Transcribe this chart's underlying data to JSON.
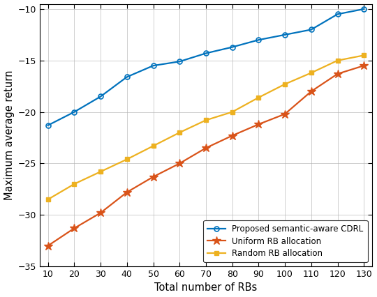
{
  "x": [
    10,
    20,
    30,
    40,
    50,
    60,
    70,
    80,
    90,
    100,
    110,
    120,
    130
  ],
  "proposed_cdrl": [
    -21.3,
    -20.0,
    -18.5,
    -16.6,
    -15.5,
    -15.1,
    -14.3,
    -13.7,
    -13.0,
    -12.5,
    -12.0,
    -10.5,
    -10.0
  ],
  "uniform_rb": [
    -33.0,
    -31.3,
    -29.8,
    -27.8,
    -26.3,
    -25.0,
    -23.5,
    -22.3,
    -21.2,
    -20.2,
    -18.0,
    -16.3,
    -15.5
  ],
  "random_rb": [
    -28.5,
    -27.0,
    -25.8,
    -24.6,
    -23.3,
    -22.0,
    -20.8,
    -20.0,
    -18.6,
    -17.3,
    -16.2,
    -15.0,
    -14.5
  ],
  "proposed_color": "#0072BD",
  "uniform_color": "#D95319",
  "random_color": "#EDB120",
  "xlabel": "Total number of RBs",
  "ylabel": "Maximum average return",
  "ylim": [
    -35,
    -9.5
  ],
  "xlim": [
    7,
    133
  ],
  "yticks": [
    -35,
    -30,
    -25,
    -20,
    -15,
    -10
  ],
  "xticks": [
    10,
    20,
    30,
    40,
    50,
    60,
    70,
    80,
    90,
    100,
    110,
    120,
    130
  ],
  "legend_proposed": "Proposed semantic-aware CDRL",
  "legend_uniform": "Uniform RB allocation",
  "legend_random": "Random RB allocation",
  "bg_color": "#ffffff",
  "grid_color": "#b0b0b0"
}
